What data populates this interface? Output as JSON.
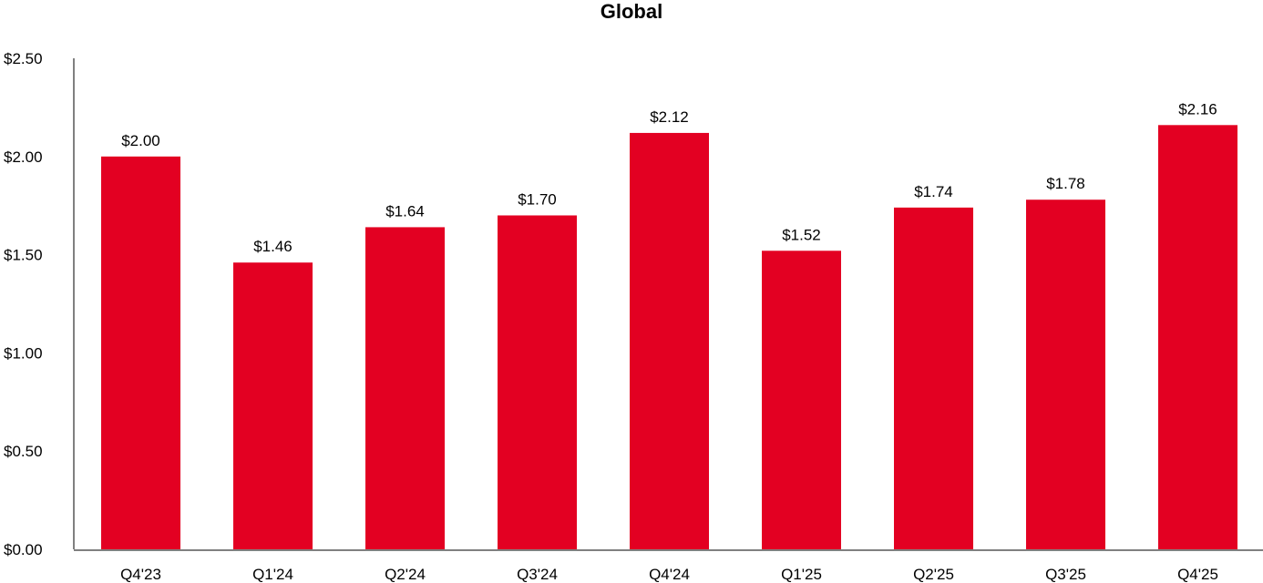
{
  "chart_data": {
    "type": "bar",
    "title": "Global",
    "xlabel": "",
    "ylabel": "",
    "categories": [
      "Q4'23",
      "Q1'24",
      "Q2'24",
      "Q3'24",
      "Q4'24",
      "Q1'25",
      "Q2'25",
      "Q3'25",
      "Q4'25"
    ],
    "values": [
      2.0,
      1.46,
      1.64,
      1.7,
      2.12,
      1.52,
      1.74,
      1.78,
      2.16
    ],
    "data_labels": [
      "$2.00",
      "$1.46",
      "$1.64",
      "$1.70",
      "$2.12",
      "$1.52",
      "$1.74",
      "$1.78",
      "$2.16"
    ],
    "ylim": [
      0,
      2.5
    ],
    "yticks": [
      0,
      0.5,
      1.0,
      1.5,
      2.0,
      2.5
    ],
    "ytick_labels": [
      "$0.00",
      "$0.50",
      "$1.00",
      "$1.50",
      "$2.00",
      "$2.50"
    ],
    "bar_color": "#E30022",
    "axis_color": "#808080",
    "grid": false,
    "legend": "none"
  }
}
